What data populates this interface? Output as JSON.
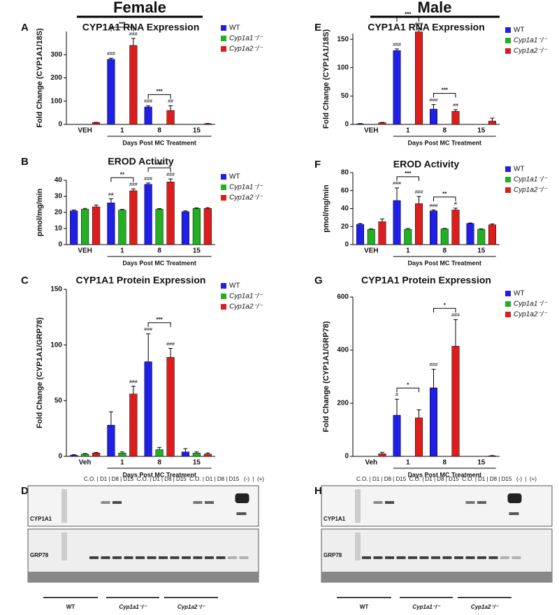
{
  "headers": [
    "Female",
    "Male"
  ],
  "chart_data": [
    {
      "type": "bar",
      "letter": "A",
      "title": "CYP1A1 RNA Expression",
      "ylabel": "Fold  Change (CYP1A1/18S)",
      "xlabel": "Days Post MC Treatment",
      "categories": [
        "VEH",
        "1",
        "8",
        "15"
      ],
      "ylim": [
        0,
        400
      ],
      "yticks": [
        0,
        100,
        200,
        300
      ],
      "comparisons": [
        null,
        "***",
        "***",
        null
      ],
      "series": [
        {
          "name": "WT",
          "color": "#1f1fe6",
          "values": [
            0,
            280,
            75,
            0
          ],
          "errors": [
            0,
            5,
            5,
            0
          ],
          "annotations": [
            null,
            "###",
            "###",
            null
          ]
        },
        {
          "name": "Cyp1a1⁻/⁻",
          "color": "#22b022",
          "values": [
            0,
            0,
            0,
            0
          ],
          "errors": [
            0,
            0,
            0,
            0
          ],
          "annotations": [
            null,
            null,
            null,
            null
          ]
        },
        {
          "name": "Cyp1a2⁻/⁻",
          "color": "#dd1c1c",
          "values": [
            8,
            340,
            60,
            3
          ],
          "errors": [
            1,
            30,
            20,
            1
          ],
          "annotations": [
            null,
            "###",
            "##",
            null
          ]
        }
      ]
    },
    {
      "type": "bar",
      "letter": "B",
      "title": "EROD Activity",
      "ylabel": "pmol/mg/min",
      "xlabel": "Days Post MC Treatment",
      "categories": [
        "VEH",
        "1",
        "8",
        "15"
      ],
      "ylim": [
        0,
        40
      ],
      "yticks": [
        0,
        10,
        20,
        30,
        40
      ],
      "comparisons": [
        null,
        "**",
        "***",
        null
      ],
      "series": [
        {
          "name": "WT",
          "color": "#1f1fe6",
          "values": [
            21,
            26,
            37.5,
            20.5
          ],
          "errors": [
            0.5,
            2.5,
            0.8,
            0.5
          ],
          "annotations": [
            null,
            "##",
            "###",
            null
          ]
        },
        {
          "name": "Cyp1a1⁻/⁻",
          "color": "#22b022",
          "values": [
            22,
            21.5,
            22,
            22.5
          ],
          "errors": [
            0.5,
            0.4,
            0.4,
            0.3
          ],
          "annotations": [
            null,
            null,
            null,
            null
          ]
        },
        {
          "name": "Cyp1a2⁻/⁻",
          "color": "#dd1c1c",
          "values": [
            23.5,
            33.5,
            39,
            22.5
          ],
          "errors": [
            1.2,
            1.2,
            1.8,
            0.5
          ],
          "annotations": [
            null,
            "###",
            "###",
            null
          ]
        }
      ]
    },
    {
      "type": "bar",
      "letter": "C",
      "title": "CYP1A1 Protein Expression",
      "ylabel": "Fold  Change (CYP1A1/GRP78)",
      "xlabel": "Days Post MC Treatment",
      "categories": [
        "Veh",
        "1",
        "8",
        "15"
      ],
      "ylim": [
        0,
        150
      ],
      "yticks": [
        0,
        50,
        100,
        150
      ],
      "comparisons": [
        null,
        null,
        "***",
        null
      ],
      "series": [
        {
          "name": "WT",
          "color": "#1f1fe6",
          "values": [
            1,
            28,
            85,
            4
          ],
          "errors": [
            0.5,
            12,
            25,
            3
          ],
          "annotations": [
            null,
            null,
            "###",
            null
          ]
        },
        {
          "name": "Cyp1a1⁻/⁻",
          "color": "#22b022",
          "values": [
            2,
            3,
            6,
            3
          ],
          "errors": [
            0.5,
            1,
            2,
            1
          ],
          "annotations": [
            null,
            null,
            null,
            null
          ]
        },
        {
          "name": "Cyp1a2⁻/⁻",
          "color": "#dd1c1c",
          "values": [
            3,
            56,
            89,
            2
          ],
          "errors": [
            0.5,
            7,
            8,
            1
          ],
          "annotations": [
            null,
            "###",
            "###",
            null
          ]
        }
      ]
    },
    {
      "type": "bar",
      "letter": "E",
      "title": "CYP1A1 RNA Expression",
      "ylabel": "Fold  Change (CYP1A1/18S)",
      "xlabel": "Days Post MC Treatment",
      "categories": [
        "VEH",
        "1",
        "8",
        "15"
      ],
      "ylim": [
        0,
        160
      ],
      "yticks": [
        0,
        50,
        100,
        150
      ],
      "comparisons": [
        null,
        "***",
        "***",
        null
      ],
      "series": [
        {
          "name": "WT",
          "color": "#1f1fe6",
          "values": [
            1,
            130,
            27,
            0
          ],
          "errors": [
            0.5,
            3,
            8,
            0
          ],
          "annotations": [
            null,
            "###",
            "###",
            null
          ]
        },
        {
          "name": "Cyp1a1⁻/⁻",
          "color": "#22b022",
          "values": [
            0,
            0,
            0,
            0
          ],
          "errors": [
            0,
            0,
            0,
            0
          ],
          "annotations": [
            null,
            null,
            null,
            null
          ]
        },
        {
          "name": "Cyp1a2⁻/⁻",
          "color": "#dd1c1c",
          "values": [
            3,
            163,
            23,
            6
          ],
          "errors": [
            0.5,
            6,
            3,
            5
          ],
          "annotations": [
            null,
            "###",
            "##",
            null
          ]
        }
      ]
    },
    {
      "type": "bar",
      "letter": "F",
      "title": "EROD Activity",
      "ylabel": "pmol/mg/min",
      "xlabel": "Days Post MC Treatment",
      "categories": [
        "VEH",
        "1",
        "8",
        "15"
      ],
      "ylim": [
        0,
        80
      ],
      "yticks": [
        0,
        20,
        40,
        60,
        80
      ],
      "comparisons": [
        null,
        "***",
        "**",
        null
      ],
      "series": [
        {
          "name": "WT",
          "color": "#1f1fe6",
          "values": [
            22.5,
            49,
            37.5,
            23.5
          ],
          "errors": [
            1,
            14,
            1,
            0.5
          ],
          "annotations": [
            null,
            "###",
            "###",
            null
          ]
        },
        {
          "name": "Cyp1a1⁻/⁻",
          "color": "#22b022",
          "values": [
            17,
            17,
            17.5,
            17
          ],
          "errors": [
            0.5,
            1,
            0.5,
            0.5
          ],
          "annotations": [
            null,
            null,
            null,
            null
          ]
        },
        {
          "name": "Cyp1a2⁻/⁻",
          "color": "#dd1c1c",
          "values": [
            25.5,
            45.5,
            38.5,
            22
          ],
          "errors": [
            3,
            8,
            2,
            1
          ],
          "annotations": [
            null,
            "###",
            "#",
            null
          ]
        }
      ]
    },
    {
      "type": "bar",
      "letter": "G",
      "title": "CYP1A1 Protein Expression",
      "ylabel": "Fold  Change (CYP1A1/GRP78)",
      "xlabel": "Days Post MC Treatment",
      "categories": [
        "Veh",
        "1",
        "8",
        "15"
      ],
      "ylim": [
        0,
        600
      ],
      "yticks": [
        0,
        200,
        400,
        600
      ],
      "comparisons": [
        null,
        "*",
        "*",
        null
      ],
      "series": [
        {
          "name": "WT",
          "color": "#1f1fe6",
          "values": [
            0,
            155,
            258,
            0
          ],
          "errors": [
            0,
            60,
            70,
            0
          ],
          "annotations": [
            null,
            "#",
            "###",
            null
          ]
        },
        {
          "name": "Cyp1a1⁻/⁻",
          "color": "#22b022",
          "values": [
            0,
            0,
            0,
            0
          ],
          "errors": [
            0,
            0,
            0,
            0
          ],
          "annotations": [
            null,
            null,
            null,
            null
          ]
        },
        {
          "name": "Cyp1a2⁻/⁻",
          "color": "#dd1c1c",
          "values": [
            10,
            145,
            415,
            2
          ],
          "errors": [
            5,
            30,
            100,
            1
          ],
          "annotations": [
            null,
            null,
            "###",
            null
          ]
        }
      ]
    }
  ],
  "blots": [
    {
      "letter": "D",
      "lanes": "C.O. | D1 | D8 | D15  C.O. | D1 | D8 | D15  C.O. | D1 | D8 | D15   (-)  |  (+)",
      "bands": [
        "CYP1A1",
        "GRP78"
      ],
      "groups": [
        "WT",
        "Cyp1a1⁻/⁻",
        "Cyp1a2⁻/⁻"
      ]
    },
    {
      "letter": "H",
      "lanes": "C.O. | D1 | D8 | D15  C.O. | D1 | D8 | D15  C.O. | D1 | D8 | D15   (-)  |  (+)",
      "bands": [
        "CYP1A1",
        "GRP78"
      ],
      "groups": [
        "WT",
        "Cyp1a1⁻/⁻",
        "Cyp1a2⁻/⁻"
      ]
    }
  ]
}
